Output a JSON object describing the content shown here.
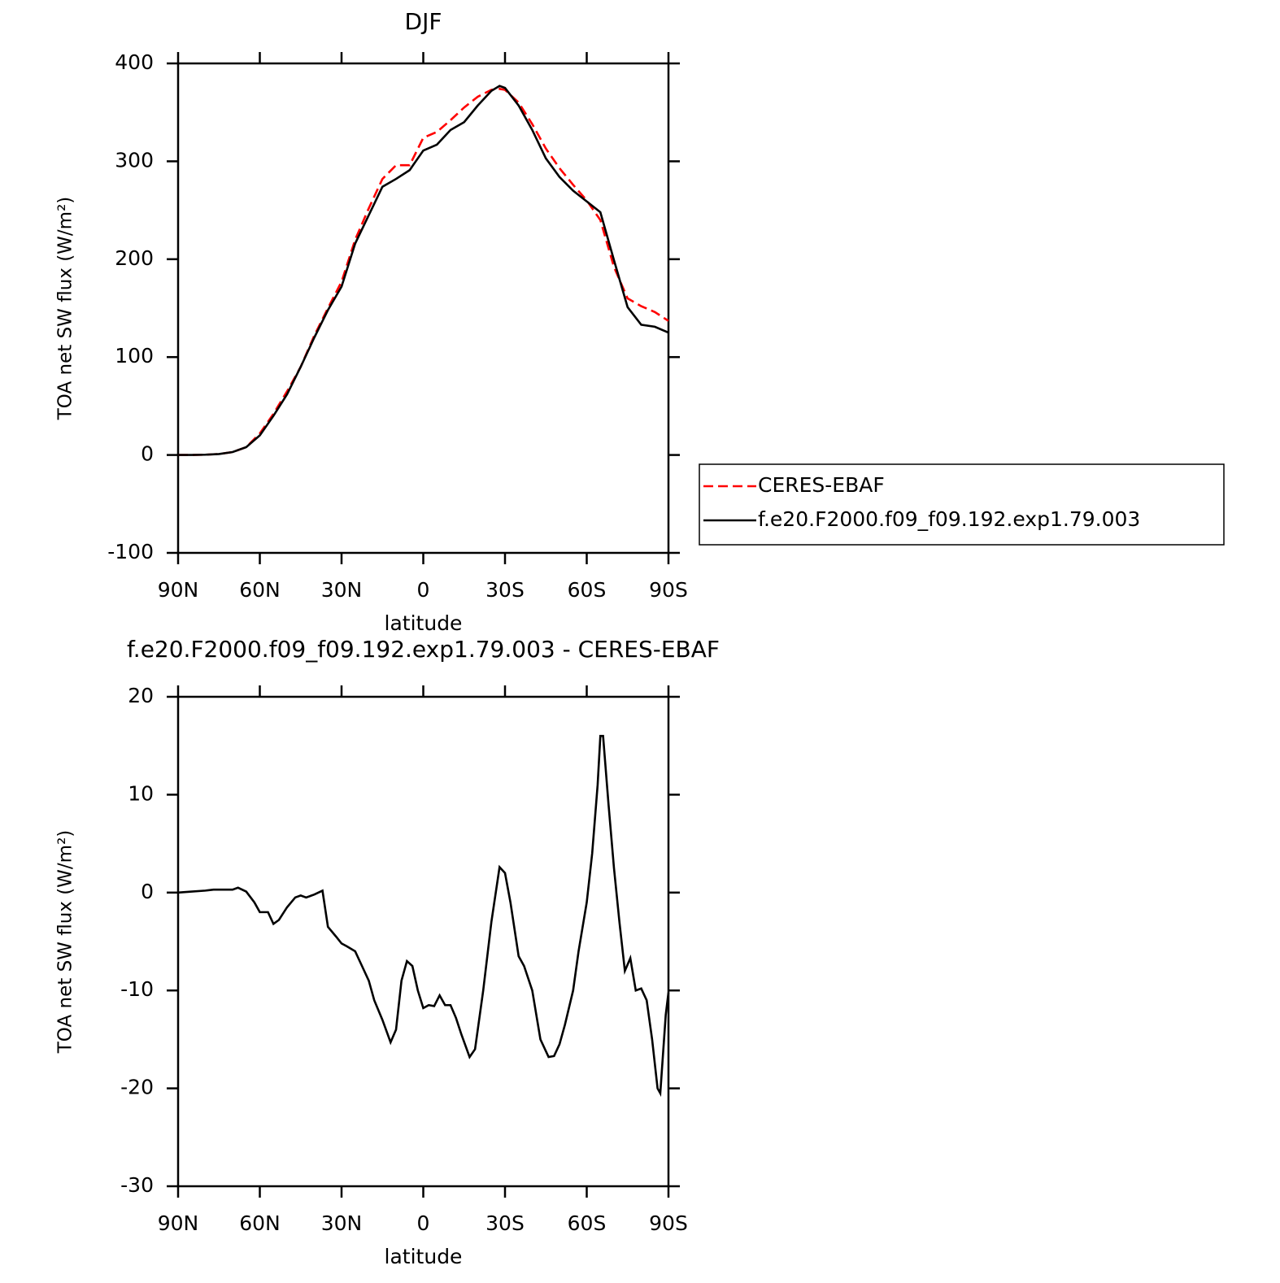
{
  "chart_data": [
    {
      "type": "line",
      "title": "DJF",
      "xlabel": "latitude",
      "ylabel": "TOA net SW flux (W/m²)",
      "x": [
        90,
        85,
        80,
        75,
        70,
        65,
        60,
        55,
        50,
        45,
        40,
        35,
        30,
        25,
        20,
        15,
        10,
        5,
        0,
        -5,
        -10,
        -15,
        -20,
        -25,
        -28,
        -30,
        -35,
        -40,
        -45,
        -50,
        -55,
        -60,
        -65,
        -70,
        -75,
        -80,
        -85,
        -90
      ],
      "series": [
        {
          "name": "CERES-EBAF",
          "color": "#ff0000",
          "line_style": "dashed",
          "values": [
            0,
            0,
            0.3,
            1,
            3,
            8,
            22,
            42,
            65,
            90,
            122,
            150,
            177,
            220,
            252,
            282,
            296,
            296,
            324,
            330,
            342,
            355,
            366,
            373,
            374,
            373,
            360,
            338,
            313,
            293,
            276,
            260,
            240,
            192,
            160,
            152,
            146,
            137
          ]
        },
        {
          "name": "f.e20.F2000.f09_f09.192.exp1.79.003",
          "color": "#000000",
          "line_style": "solid",
          "values": [
            0,
            0,
            0.3,
            1,
            3,
            8,
            20,
            40,
            62,
            90,
            120,
            148,
            172,
            216,
            245,
            274,
            282,
            291,
            311,
            317,
            332,
            340,
            357,
            372,
            377,
            375,
            357,
            332,
            303,
            284,
            270,
            259,
            248,
            199,
            151,
            133,
            131,
            125
          ]
        }
      ],
      "xlim": [
        90,
        -90
      ],
      "xticks": [
        {
          "value": 90,
          "label": "90N"
        },
        {
          "value": 60,
          "label": "60N"
        },
        {
          "value": 30,
          "label": "30N"
        },
        0,
        {
          "value": -30,
          "label": "30S"
        },
        {
          "value": -60,
          "label": "60S"
        },
        {
          "value": -90,
          "label": "90S"
        }
      ],
      "ylim": [
        -100,
        400
      ],
      "yticks": [
        -100,
        0,
        100,
        200,
        300,
        400
      ],
      "legend": "right"
    },
    {
      "type": "line",
      "title": "f.e20.F2000.f09_f09.192.exp1.79.003 - CERES-EBAF",
      "xlabel": "latitude",
      "ylabel": "TOA net SW flux (W/m²)",
      "x": [
        90,
        85,
        80,
        77,
        75,
        70,
        68,
        65,
        62,
        60,
        57,
        55,
        53,
        50,
        47,
        45,
        43,
        40,
        37,
        35,
        32,
        30,
        28,
        25,
        23,
        20,
        18,
        15,
        12,
        10,
        8,
        6,
        4,
        2,
        0,
        -2,
        -4,
        -6,
        -8,
        -10,
        -12,
        -14,
        -17,
        -19,
        -22,
        -25,
        -28,
        -30,
        -32,
        -35,
        -37,
        -40,
        -43,
        -46,
        -48,
        -50,
        -52,
        -55,
        -57,
        -60,
        -62,
        -64,
        -65,
        -66,
        -68,
        -70,
        -72,
        -74,
        -76,
        -78,
        -80,
        -82,
        -84,
        -86,
        -87,
        -89,
        -90
      ],
      "color": "#000000",
      "values": [
        0,
        0.1,
        0.2,
        0.3,
        0.3,
        0.3,
        0.5,
        0.1,
        -1,
        -2,
        -2,
        -3.2,
        -2.8,
        -1.5,
        -0.5,
        -0.3,
        -0.5,
        -0.2,
        0.2,
        -3.5,
        -4.5,
        -5.2,
        -5.5,
        -6,
        -7.2,
        -9,
        -11,
        -13,
        -15.3,
        -14,
        -9,
        -7,
        -7.5,
        -10,
        -11.8,
        -11.5,
        -11.6,
        -10.5,
        -11.5,
        -11.5,
        -12.8,
        -14.5,
        -16.8,
        -16,
        -10,
        -3,
        2.6,
        2,
        -1,
        -6.5,
        -7.5,
        -10,
        -15,
        -16.8,
        -16.7,
        -15.5,
        -13.5,
        -10,
        -6,
        -1,
        4,
        11,
        16,
        16,
        9,
        2.5,
        -3,
        -8,
        -6.7,
        -10,
        -9.8,
        -11,
        -15,
        -20,
        -20.5,
        -12.5,
        -10.2
      ],
      "xlim": [
        90,
        -90
      ],
      "xticks": [
        {
          "value": 90,
          "label": "90N"
        },
        {
          "value": 60,
          "label": "60N"
        },
        {
          "value": 30,
          "label": "30N"
        },
        0,
        {
          "value": -30,
          "label": "30S"
        },
        {
          "value": -60,
          "label": "60S"
        },
        {
          "value": -90,
          "label": "90S"
        }
      ],
      "ylim": [
        -30,
        20
      ],
      "yticks": [
        -30,
        -20,
        -10,
        0,
        10,
        20
      ]
    }
  ]
}
